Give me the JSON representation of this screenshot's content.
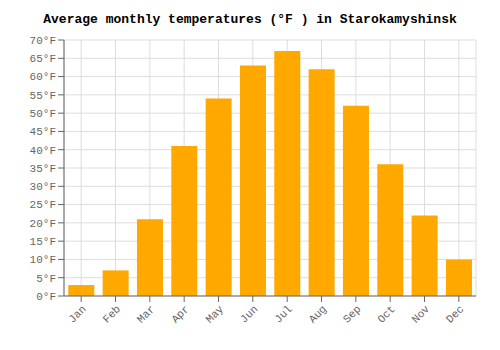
{
  "chart_data": {
    "type": "bar",
    "title": "Average monthly temperatures (°F ) in Starokamyshinsk",
    "categories": [
      "Jan",
      "Feb",
      "Mar",
      "Apr",
      "May",
      "Jun",
      "Jul",
      "Aug",
      "Sep",
      "Oct",
      "Nov",
      "Dec"
    ],
    "values": [
      3,
      7,
      21,
      41,
      54,
      63,
      67,
      62,
      52,
      36,
      22,
      10
    ],
    "color": "#FFA800",
    "ylim": [
      0,
      70
    ],
    "yticks": [
      {
        "value": 0,
        "label": "0°F"
      },
      {
        "value": 5,
        "label": "5°F"
      },
      {
        "value": 10,
        "label": "10°F"
      },
      {
        "value": 15,
        "label": "15°F"
      },
      {
        "value": 20,
        "label": "20°F"
      },
      {
        "value": 25,
        "label": "25°F"
      },
      {
        "value": 30,
        "label": "30°F"
      },
      {
        "value": 35,
        "label": "35°F"
      },
      {
        "value": 40,
        "label": "40°F"
      },
      {
        "value": 45,
        "label": "45°F"
      },
      {
        "value": 50,
        "label": "50°F"
      },
      {
        "value": 55,
        "label": "55°F"
      },
      {
        "value": 60,
        "label": "60°F"
      },
      {
        "value": 65,
        "label": "65°F"
      },
      {
        "value": 70,
        "label": "70°F"
      }
    ],
    "grid": true
  }
}
